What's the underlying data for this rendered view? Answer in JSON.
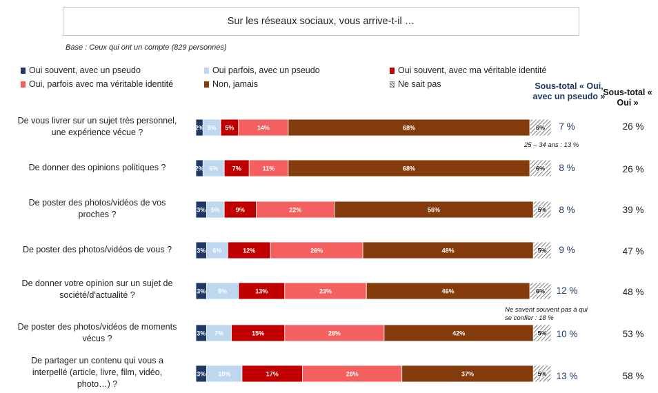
{
  "header": {
    "title": "Sur les réseaux sociaux, vous arrive-t-il …",
    "base": "Base : Ceux qui ont un compte (829 personnes)"
  },
  "columns": {
    "subtotal_pseudo_header": "Sous-total « Oui, avec un pseudo »",
    "subtotal_oui_header": "Sous-total « Oui »"
  },
  "notes": {
    "note1": "25 – 34 ans : 13 %",
    "note2_line1": "Ne savent souvent pas à qui",
    "note2_line2": "se confier : 18 %"
  },
  "chart_data": {
    "type": "bar",
    "orientation": "horizontal",
    "stacked": true,
    "percent_scale": true,
    "title": "Sur les réseaux sociaux, vous arrive-t-il …",
    "series": [
      {
        "name": "Oui souvent, avec un pseudo",
        "color": "#1f3864",
        "values": [
          2,
          2,
          3,
          3,
          3,
          3,
          3
        ],
        "labels": [
          "2%",
          "2%",
          "3%",
          "3%",
          "3%",
          "3%",
          "3%"
        ]
      },
      {
        "name": "Oui parfois, avec un pseudo",
        "color": "#bdd7ee",
        "values": [
          5,
          6,
          5,
          6,
          9,
          7,
          10
        ],
        "labels": [
          "5%",
          "6%",
          "5%",
          "6%",
          "9%",
          "7%",
          "10%"
        ]
      },
      {
        "name": "Oui souvent, avec ma véritable identité",
        "color": "#c00000",
        "values": [
          5,
          7,
          9,
          12,
          13,
          15,
          17
        ],
        "labels": [
          "5%",
          "7%",
          "9%",
          "12%",
          "13%",
          "15%",
          "17%"
        ]
      },
      {
        "name": "Oui, parfois avec ma véritable identité",
        "color": "#f4605f",
        "values": [
          14,
          11,
          22,
          26,
          23,
          28,
          28
        ],
        "labels": [
          "14%",
          "11%",
          "22%",
          "26%",
          "23%",
          "28%",
          "28%"
        ]
      },
      {
        "name": "Non, jamais",
        "color": "#843c0c",
        "values": [
          68,
          68,
          56,
          48,
          46,
          42,
          37
        ],
        "labels": [
          "68%",
          "68%",
          "56%",
          "48%",
          "46%",
          "42%",
          "37%"
        ]
      },
      {
        "name": "Ne sait pas",
        "color": "hatch",
        "values": [
          6,
          6,
          5,
          5,
          6,
          5,
          5
        ],
        "labels": [
          "6%",
          "6%",
          "5%",
          "5%",
          "6%",
          "5%",
          "5%"
        ]
      }
    ],
    "categories": [
      {
        "lines": [
          "De vous livrer sur un sujet très personnel,",
          "une expérience vécue ?"
        ],
        "subtotal_pseudo": "7 %",
        "subtotal_oui": "26 %"
      },
      {
        "lines": [
          "De donner des opinions politiques ?"
        ],
        "subtotal_pseudo": "8 %",
        "subtotal_oui": "26 %"
      },
      {
        "lines": [
          "De poster des photos/vidéos de vos",
          "proches ?"
        ],
        "subtotal_pseudo": "8 %",
        "subtotal_oui": "39 %"
      },
      {
        "lines": [
          "De poster des photos/vidéos de vous ?"
        ],
        "subtotal_pseudo": "9 %",
        "subtotal_oui": "47 %"
      },
      {
        "lines": [
          "De donner votre opinion sur un sujet de",
          "société/d'actualité ?"
        ],
        "subtotal_pseudo": "12 %",
        "subtotal_oui": "48 %"
      },
      {
        "lines": [
          "De poster des photos/vidéos de moments",
          "vécus ?"
        ],
        "subtotal_pseudo": "10 %",
        "subtotal_oui": "53 %"
      },
      {
        "lines": [
          "De partager un contenu qui vous a",
          "interpellé (article, livre, film, vidéo,",
          "photo…) ?"
        ],
        "subtotal_pseudo": "13 %",
        "subtotal_oui": "58 %"
      }
    ]
  }
}
